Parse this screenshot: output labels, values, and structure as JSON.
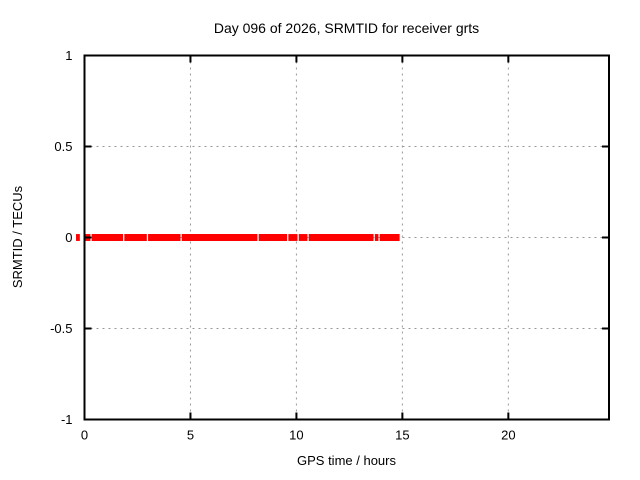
{
  "chart_data": {
    "type": "scatter",
    "title": "Day 096 of 2026, SRMTID for receiver grts",
    "xlabel": "GPS time / hours",
    "ylabel": "SRMTID / TECUs",
    "xlim": [
      0,
      24.75
    ],
    "ylim": [
      -1,
      1
    ],
    "grid": true,
    "legend": "none",
    "xticks": [
      {
        "value": 0,
        "label": "0"
      },
      {
        "value": 5,
        "label": "5"
      },
      {
        "value": 10,
        "label": "10"
      },
      {
        "value": 15,
        "label": "15"
      },
      {
        "value": 20,
        "label": "20"
      }
    ],
    "yticks": [
      {
        "value": 1,
        "label": "1"
      },
      {
        "value": 0.5,
        "label": "0.5"
      },
      {
        "value": 0,
        "label": "0"
      },
      {
        "value": -0.5,
        "label": "-0.5"
      },
      {
        "value": -1,
        "label": "-1"
      }
    ],
    "series": [
      {
        "name": "SRMTID",
        "color": "#ff0000",
        "y_value": 0,
        "band_halfwidth_tecus": 0.019,
        "segments_hours": [
          [
            -0.4,
            -0.22
          ],
          [
            0.03,
            0.28
          ],
          [
            0.34,
            1.82
          ],
          [
            1.88,
            2.94
          ],
          [
            3.0,
            4.53
          ],
          [
            4.59,
            8.16
          ],
          [
            8.22,
            9.56
          ],
          [
            9.62,
            10.05
          ],
          [
            10.11,
            10.52
          ],
          [
            10.58,
            13.64
          ],
          [
            13.7,
            13.87
          ],
          [
            13.93,
            14.87
          ]
        ]
      }
    ],
    "colors": {
      "background": "#ffffff",
      "text": "#000000",
      "axis": "#000000",
      "grid": "#999999",
      "data": "#ff0000"
    }
  }
}
